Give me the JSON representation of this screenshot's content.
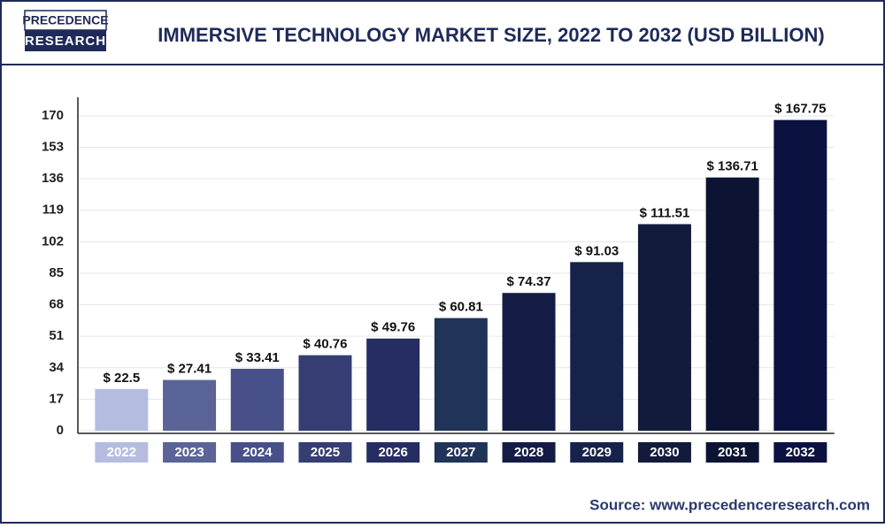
{
  "logo": {
    "line1": "PRECEDENCE",
    "line2": "RESEARCH"
  },
  "source": "Source: www.precedenceresearch.com",
  "chart_data": {
    "type": "bar",
    "title": "IMMERSIVE TECHNOLOGY MARKET SIZE, 2022 TO 2032 (USD BILLION)",
    "categories": [
      "2022",
      "2023",
      "2024",
      "2025",
      "2026",
      "2027",
      "2028",
      "2029",
      "2030",
      "2031",
      "2032"
    ],
    "values": [
      22.5,
      27.41,
      33.41,
      40.76,
      49.76,
      60.81,
      74.37,
      91.03,
      111.51,
      136.71,
      167.75
    ],
    "value_labels": [
      "$ 22.5",
      "$ 27.41",
      "$ 33.41",
      "$ 40.76",
      "$ 49.76",
      "$ 60.81",
      "$ 74.37",
      "$ 91.03",
      "$ 111.51",
      "$ 136.71",
      "$ 167.75"
    ],
    "colors": [
      "#b4bde0",
      "#5a6496",
      "#48508a",
      "#353d72",
      "#262d62",
      "#203358",
      "#141c45",
      "#17224a",
      "#131b3c",
      "#0d1333",
      "#0b1240"
    ],
    "ylim": [
      0,
      180
    ],
    "yticks": [
      0,
      17,
      34,
      51,
      68,
      85,
      102,
      119,
      136,
      153,
      170
    ],
    "grid": true
  }
}
